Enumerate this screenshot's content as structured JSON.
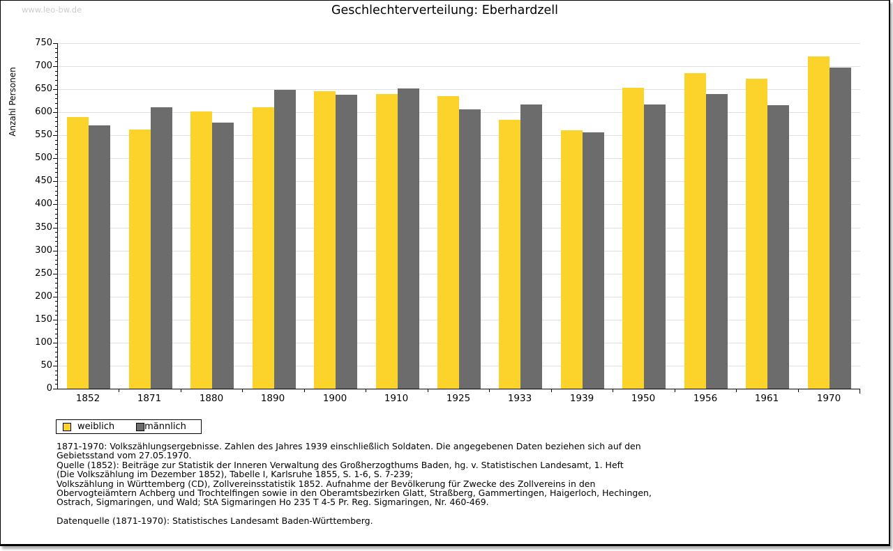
{
  "page": {
    "watermark": "www.leo-bw.de"
  },
  "chart_data": {
    "type": "bar",
    "title": "Geschlechterverteilung: Eberhardzell",
    "xlabel": "",
    "ylabel": "Anzahl Personen",
    "ylim": [
      0,
      750
    ],
    "yticks": [
      0,
      50,
      100,
      150,
      200,
      250,
      300,
      350,
      400,
      450,
      500,
      550,
      600,
      650,
      700,
      750
    ],
    "y_minor_step": 10,
    "grid": true,
    "legend_position": "bottom-left",
    "categories": [
      "1852",
      "1871",
      "1880",
      "1890",
      "1900",
      "1910",
      "1925",
      "1933",
      "1939",
      "1950",
      "1956",
      "1961",
      "1970"
    ],
    "series": [
      {
        "name": "weiblich",
        "color": "#FCD32B",
        "values": [
          590,
          563,
          602,
          611,
          645,
          640,
          635,
          584,
          561,
          653,
          685,
          673,
          721
        ]
      },
      {
        "name": "männlich",
        "color": "#6C6C6C",
        "values": [
          571,
          611,
          577,
          648,
          638,
          651,
          606,
          617,
          556,
          617,
          639,
          616,
          697
        ]
      }
    ]
  },
  "footnotes": {
    "lines": [
      "1871-1970: Volkszählungsergebnisse. Zahlen des Jahres 1939 einschließlich Soldaten. Die angegebenen Daten beziehen sich auf den",
      "Gebietsstand vom 27.05.1970.",
      "Quelle (1852): Beiträge zur Statistik der Inneren Verwaltung des Großherzogthums Baden, hg. v. Statistischen Landesamt, 1. Heft",
      "(Die Volkszählung im Dezember 1852), Tabelle I, Karlsruhe 1855, S. 1-6, S. 7-239;",
      "Volkszählung in Württemberg (CD), Zollvereinsstatistik 1852. Aufnahme der Bevölkerung für Zwecke des Zollvereins in den",
      "Obervogteiämtern Achberg und Trochtelfingen sowie in den Oberamtsbezirken Glatt, Straßberg, Gammertingen, Haigerloch, Hechingen,",
      "Ostrach, Sigmaringen, und Wald; StA Sigmaringen Ho 235 T 4-5 Pr. Reg. Sigmaringen, Nr. 460-469."
    ],
    "datasource": "Datenquelle (1871-1970): Statistisches Landesamt Baden-Württemberg."
  },
  "colors": {
    "weiblich": "#FCD32B",
    "männlich": "#6C6C6C",
    "gridline": "#e0e0e0",
    "axis": "#000000",
    "watermark": "#cccccc"
  }
}
